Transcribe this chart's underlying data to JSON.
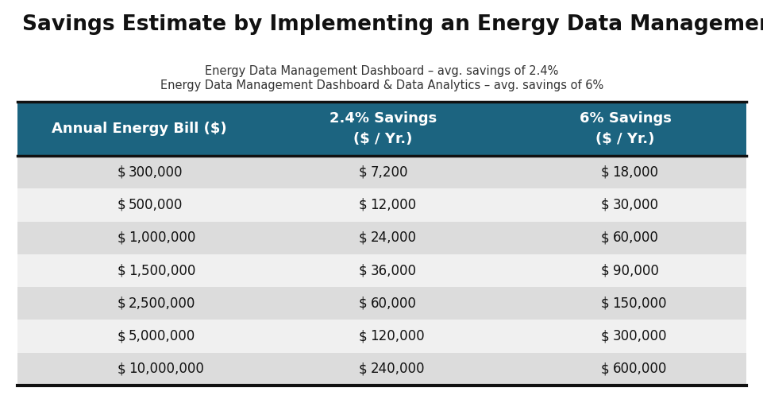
{
  "title": "Savings Estimate by Implementing an Energy Data Management System",
  "subtitle_line1": "Energy Data Management Dashboard – avg. savings of 2.4%",
  "subtitle_line2": "Energy Data Management Dashboard & Data Analytics – avg. savings of 6%",
  "header_col1": "Annual Energy Bill ($)",
  "header_col2": "2.4% Savings\n($ / Yr.)",
  "header_col3": "6% Savings\n($ / Yr.)",
  "header_bg_color": "#1c6480",
  "header_text_color": "#ffffff",
  "row_alt_color": "#dcdcdc",
  "row_plain_color": "#f0f0f0",
  "border_color": "#111111",
  "title_color": "#111111",
  "subtitle_color": "#333333",
  "bg_color": "#ffffff",
  "rows": [
    [
      "$",
      "300,000",
      "$",
      "7,200",
      "$",
      "18,000"
    ],
    [
      "$",
      "500,000",
      "$",
      "12,000",
      "$",
      "30,000"
    ],
    [
      "$",
      "1,000,000",
      "$",
      "24,000",
      "$",
      "60,000"
    ],
    [
      "$",
      "1,500,000",
      "$",
      "36,000",
      "$",
      "90,000"
    ],
    [
      "$",
      "2,500,000",
      "$",
      "60,000",
      "$",
      "150,000"
    ],
    [
      "$",
      "5,000,000",
      "$",
      "120,000",
      "$",
      "300,000"
    ],
    [
      "$",
      "10,000,000",
      "$",
      "240,000",
      "$",
      "600,000"
    ]
  ],
  "figsize": [
    9.62,
    5.07
  ],
  "dpi": 100
}
